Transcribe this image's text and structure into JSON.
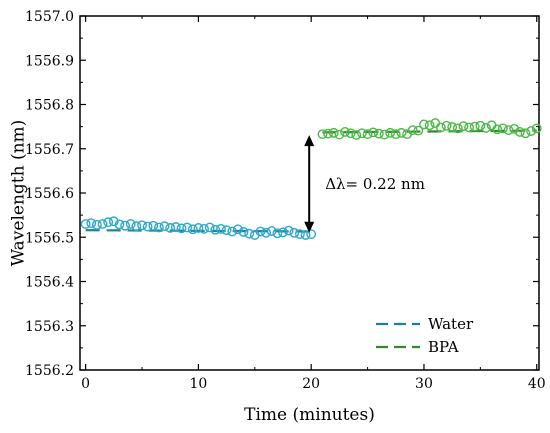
{
  "chart_data": {
    "type": "scatter",
    "title": "",
    "xlabel": "Time (minutes)",
    "ylabel": "Wavelength (nm)",
    "xlim": [
      -0.5,
      40.2
    ],
    "ylim": [
      1556.2,
      1557.0
    ],
    "xticks": [
      0,
      10,
      20,
      30,
      40
    ],
    "yticks": [
      1556.2,
      1556.3,
      1556.4,
      1556.5,
      1556.6,
      1556.7,
      1556.8,
      1556.9,
      1557.0
    ],
    "xtick_labels": [
      "0",
      "10",
      "20",
      "30",
      "40"
    ],
    "ytick_labels": [
      "1556.2",
      "1556.3",
      "1556.4",
      "1556.5",
      "1556.6",
      "1556.7",
      "1556.8",
      "1556.9",
      "1557.0"
    ],
    "grid": false,
    "legend_position": "bottom-right",
    "series": [
      {
        "name": "Water",
        "color": "#2aa9c9",
        "fit_color": "#1f7f98",
        "fit": [
          [
            0,
            1556.516
          ],
          [
            20,
            1556.513
          ]
        ],
        "x": [
          0,
          0.5,
          1,
          1.5,
          2,
          2.5,
          3,
          3.5,
          4,
          4.5,
          5,
          5.5,
          6,
          6.5,
          7,
          7.5,
          8,
          8.5,
          9,
          9.5,
          10,
          10.5,
          11,
          11.5,
          12,
          12.5,
          13,
          13.5,
          14,
          14.5,
          15,
          15.5,
          16,
          16.5,
          17,
          17.5,
          18,
          18.5,
          19,
          19.5,
          20
        ],
        "y": [
          1556.53,
          1556.532,
          1556.528,
          1556.53,
          1556.534,
          1556.536,
          1556.529,
          1556.526,
          1556.53,
          1556.525,
          1556.527,
          1556.524,
          1556.526,
          1556.522,
          1556.525,
          1556.521,
          1556.523,
          1556.52,
          1556.522,
          1556.518,
          1556.521,
          1556.519,
          1556.522,
          1556.517,
          1556.519,
          1556.516,
          1556.513,
          1556.518,
          1556.512,
          1556.508,
          1556.505,
          1556.513,
          1556.51,
          1556.514,
          1556.509,
          1556.511,
          1556.515,
          1556.51,
          1556.507,
          1556.505,
          1556.507
        ]
      },
      {
        "name": "BPA",
        "color": "#4db848",
        "fit_color": "#2f8a2b",
        "fit": [
          [
            21,
            1556.737
          ],
          [
            40,
            1556.741
          ]
        ],
        "x": [
          21,
          21.5,
          22,
          22.5,
          23,
          23.5,
          24,
          24.5,
          25,
          25.5,
          26,
          26.5,
          27,
          27.5,
          28,
          28.5,
          29,
          29.5,
          30,
          30.5,
          31,
          31.5,
          32,
          32.5,
          33,
          33.5,
          34,
          34.5,
          35,
          35.5,
          36,
          36.5,
          37,
          37.5,
          38,
          38.5,
          39,
          39.5,
          40
        ],
        "y": [
          1556.733,
          1556.734,
          1556.736,
          1556.732,
          1556.738,
          1556.735,
          1556.731,
          1556.735,
          1556.733,
          1556.737,
          1556.734,
          1556.732,
          1556.736,
          1556.733,
          1556.736,
          1556.733,
          1556.742,
          1556.741,
          1556.755,
          1556.753,
          1556.758,
          1556.748,
          1556.752,
          1556.749,
          1556.746,
          1556.751,
          1556.748,
          1556.75,
          1556.752,
          1556.747,
          1556.753,
          1556.744,
          1556.746,
          1556.742,
          1556.745,
          1556.738,
          1556.735,
          1556.74,
          1556.746
        ]
      }
    ],
    "annotation": {
      "text": "Δλ= 0.22 nm",
      "arrow_x": 20.0,
      "arrow_y_from": 1556.508,
      "arrow_y_to": 1556.733
    }
  }
}
